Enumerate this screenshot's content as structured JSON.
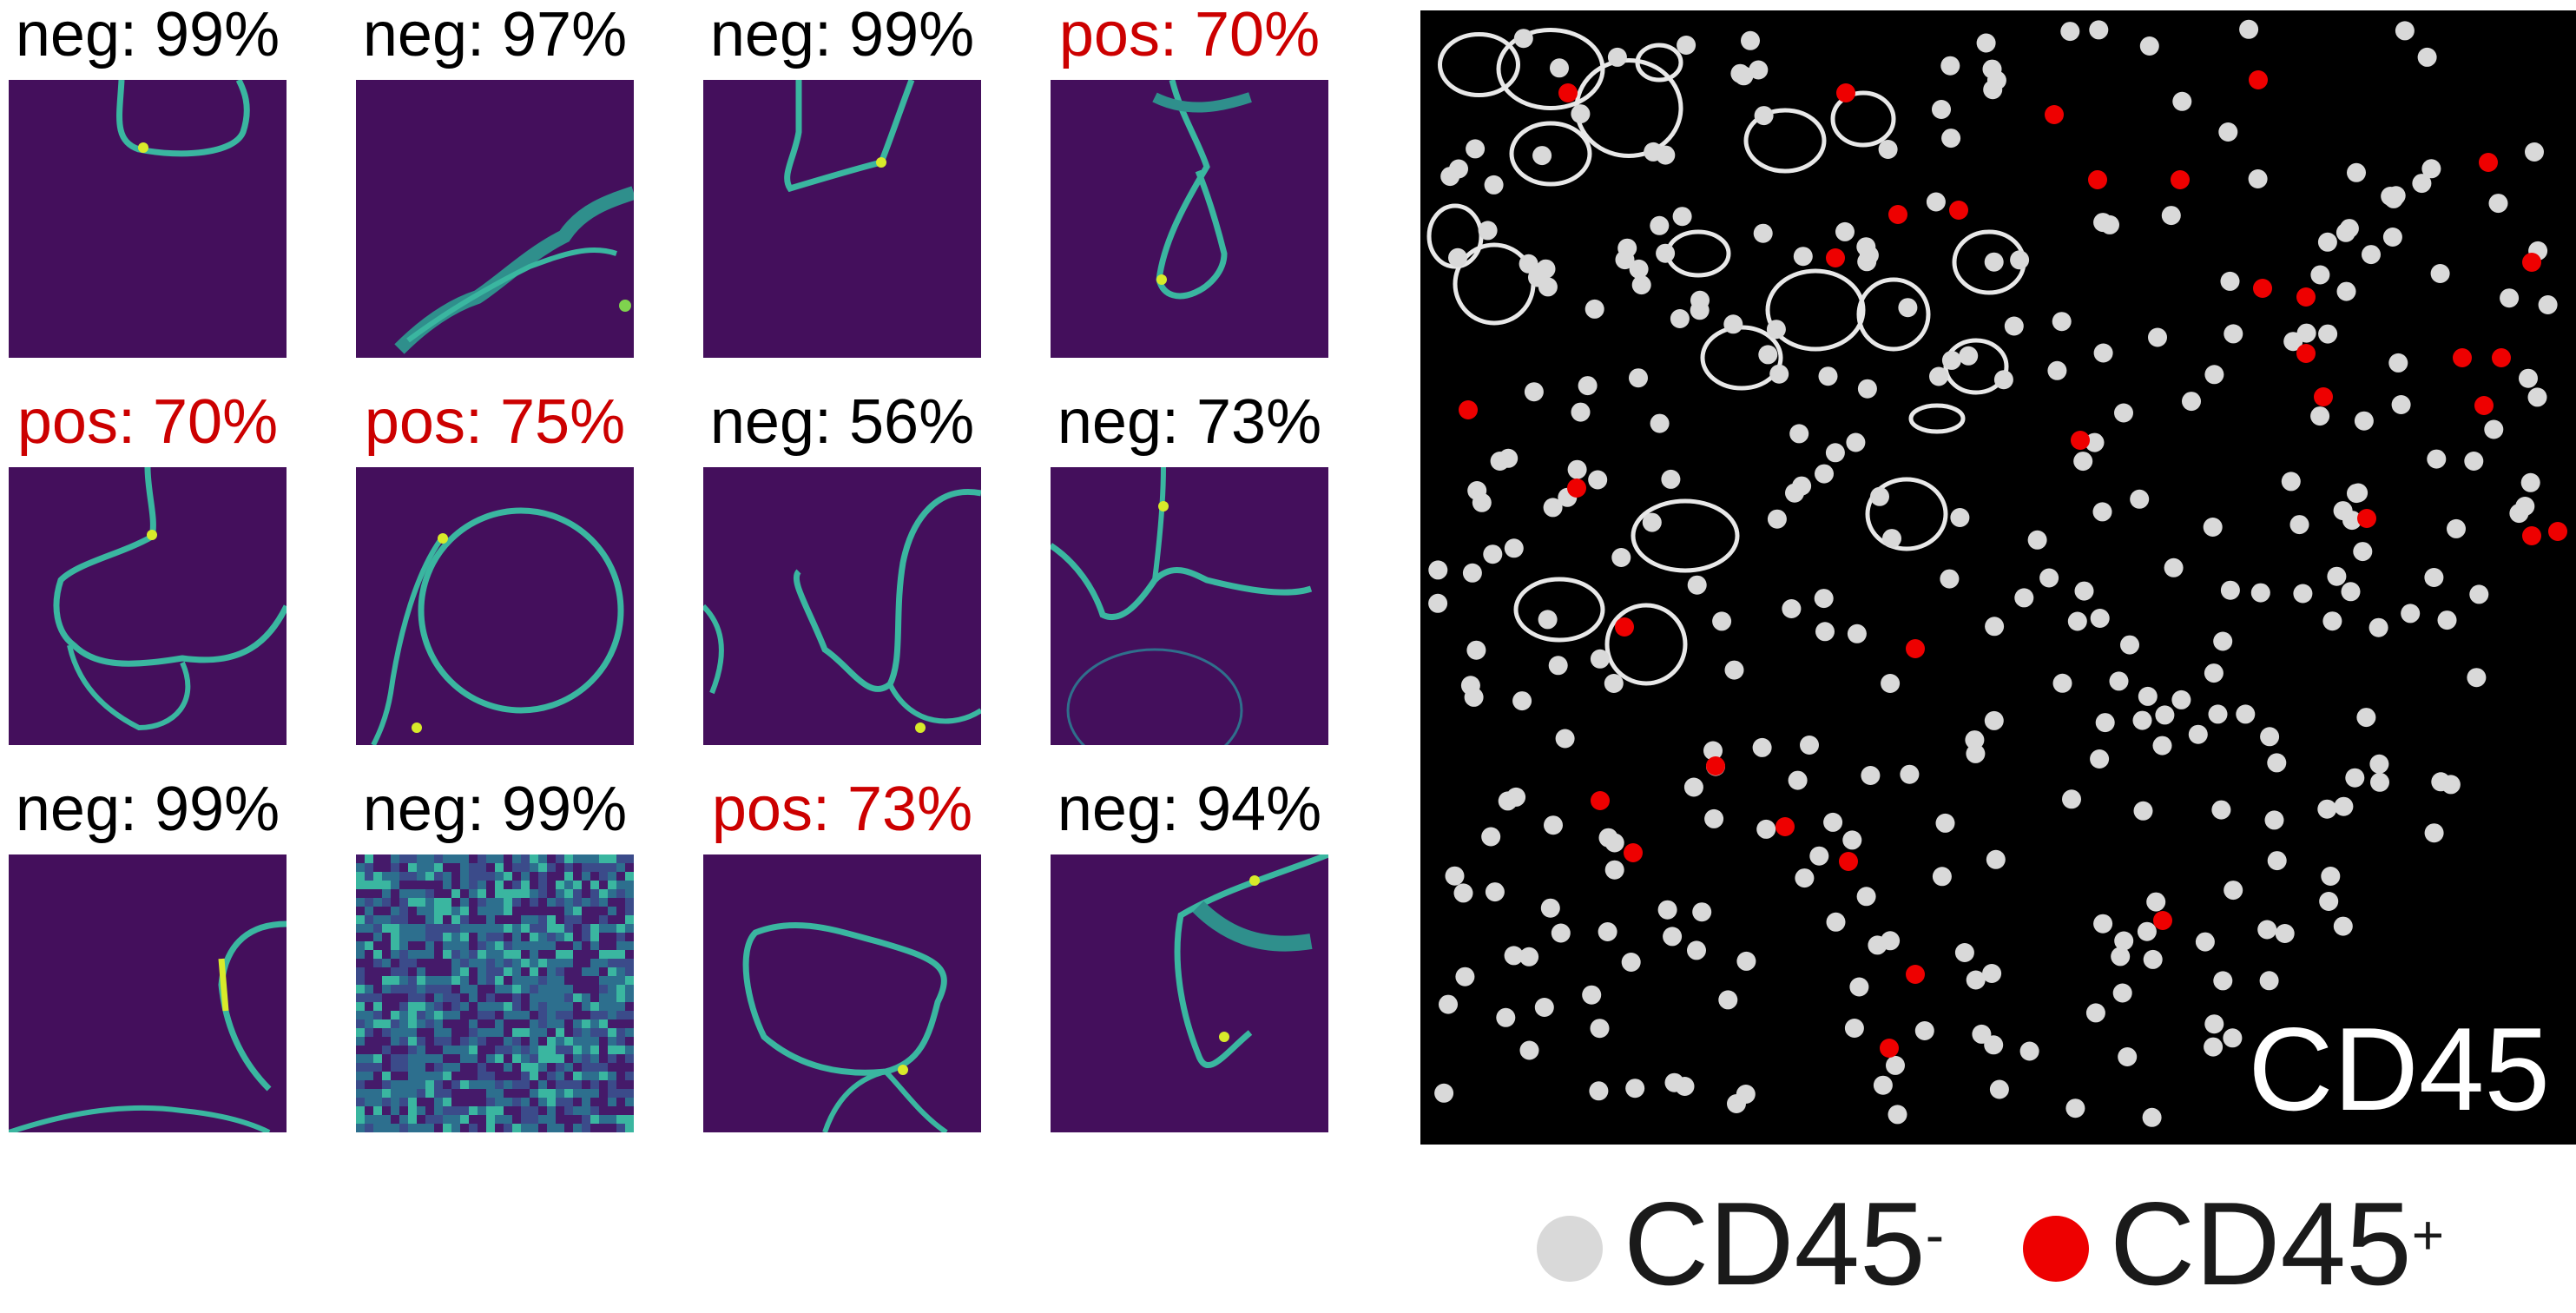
{
  "tiles": [
    {
      "label": "neg: 99%",
      "class": "neg"
    },
    {
      "label": "neg: 97%",
      "class": "neg"
    },
    {
      "label": "neg: 99%",
      "class": "neg"
    },
    {
      "label": "pos: 70%",
      "class": "pos"
    },
    {
      "label": "pos: 70%",
      "class": "pos"
    },
    {
      "label": "pos: 75%",
      "class": "pos"
    },
    {
      "label": "neg: 56%",
      "class": "neg"
    },
    {
      "label": "neg: 73%",
      "class": "neg"
    },
    {
      "label": "neg: 99%",
      "class": "neg"
    },
    {
      "label": "neg: 99%",
      "class": "neg"
    },
    {
      "label": "pos: 73%",
      "class": "pos"
    },
    {
      "label": "neg: 94%",
      "class": "neg"
    }
  ],
  "overview": {
    "stain_label": "CD45"
  },
  "legend": {
    "negative": {
      "text": "CD45",
      "superscript": "-",
      "color": "#d9d9d9"
    },
    "positive": {
      "text": "CD45",
      "superscript": "+",
      "color": "#ee0000"
    }
  },
  "colors": {
    "tile_background": "#440f5c",
    "membrane_signal": "#3ab6a0",
    "membrane_bright": "#d8ea2a",
    "neg_label": "#000000",
    "pos_label": "#cc0000",
    "overview_background": "#000000",
    "negative_dot": "#d9d9d9",
    "positive_dot": "#ee0000"
  }
}
